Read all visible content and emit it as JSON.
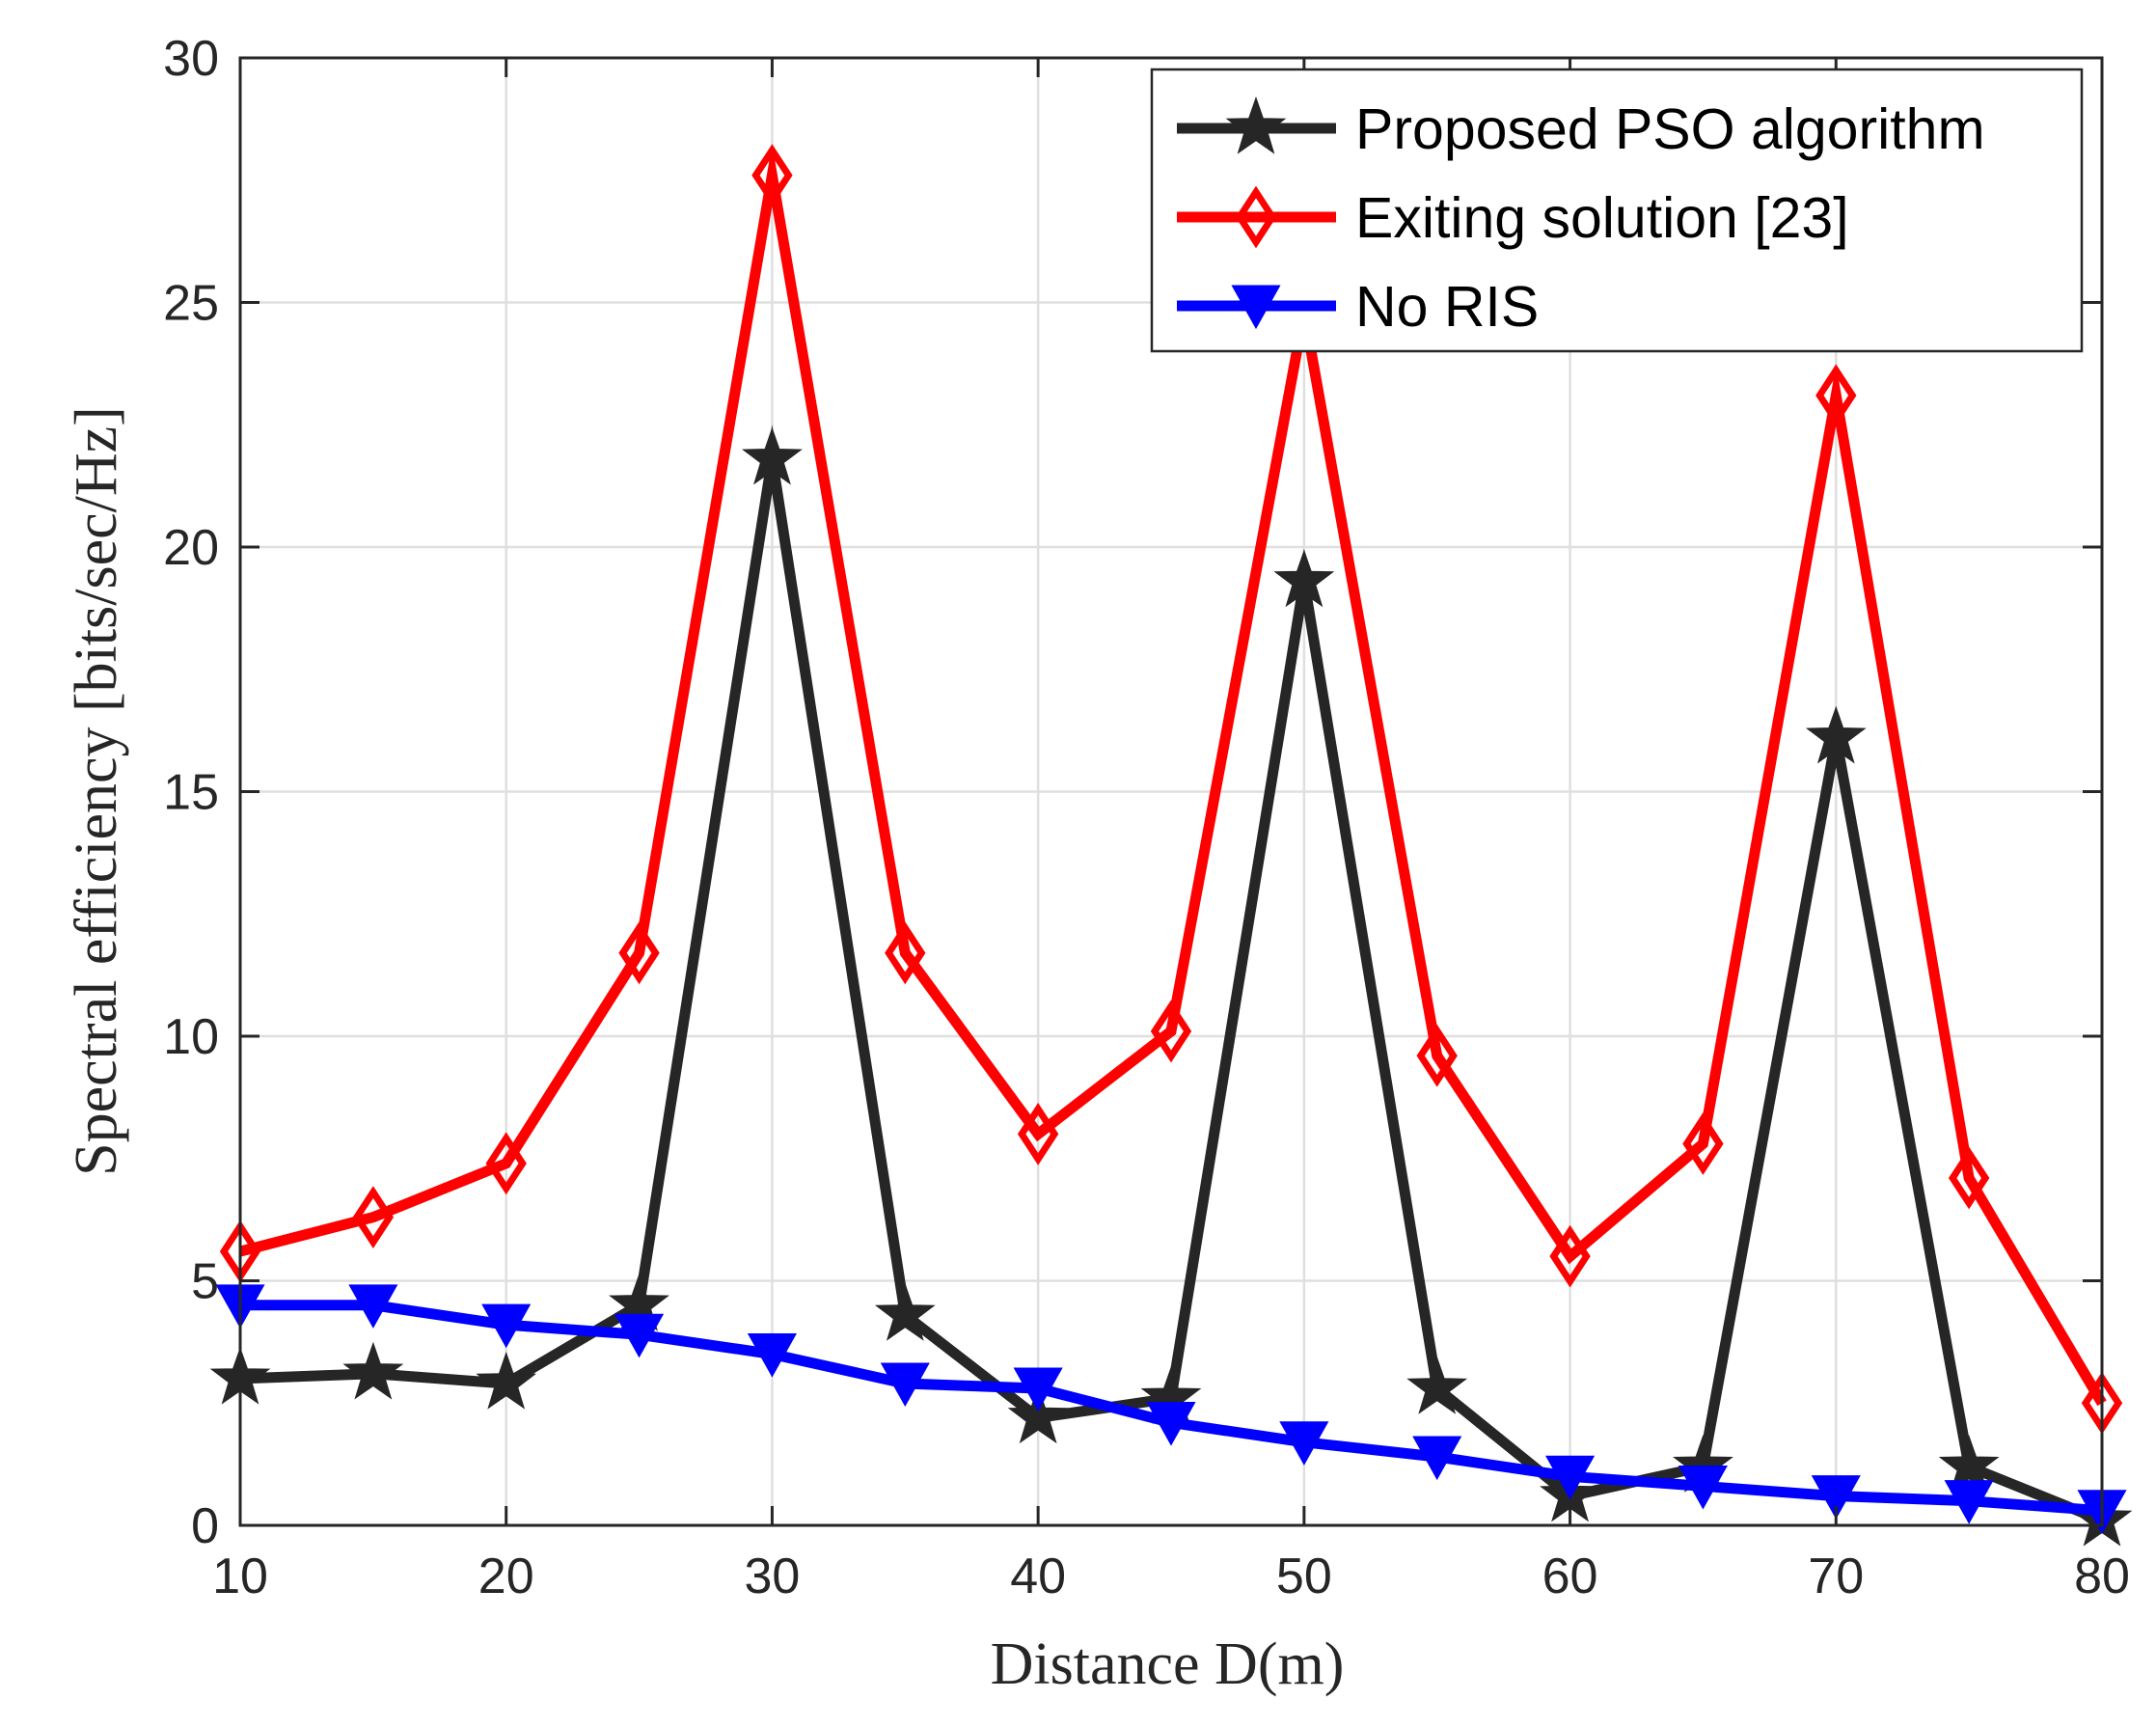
{
  "chart_data": {
    "type": "line",
    "title": "",
    "xlabel": "Distance D(m)",
    "ylabel": "Spectral efficiency [bits/sec/Hz]",
    "xlim": [
      10,
      80
    ],
    "ylim": [
      0,
      30
    ],
    "xticks": [
      10,
      20,
      30,
      40,
      50,
      60,
      70,
      80
    ],
    "yticks": [
      0,
      5,
      10,
      15,
      20,
      25,
      30
    ],
    "grid": true,
    "legend_position": "top-right",
    "x": [
      10,
      15,
      20,
      25,
      30,
      35,
      40,
      45,
      50,
      55,
      60,
      65,
      70,
      75,
      80
    ],
    "series": [
      {
        "name": "Proposed PSO algorithm",
        "color": "#262626",
        "marker": "star",
        "values": [
          3.0,
          3.1,
          2.9,
          4.5,
          21.8,
          4.3,
          2.2,
          2.6,
          19.3,
          2.8,
          0.6,
          1.2,
          16.1,
          1.2,
          0.1
        ]
      },
      {
        "name": "Exiting solution [23]",
        "color": "#ff0000",
        "marker": "diamond",
        "values": [
          5.6,
          6.3,
          7.4,
          11.7,
          27.6,
          11.7,
          8.0,
          10.1,
          24.8,
          9.6,
          5.5,
          7.8,
          23.1,
          7.1,
          2.5
        ]
      },
      {
        "name": "No RIS",
        "color": "#0000ff",
        "marker": "triangle-down",
        "values": [
          4.5,
          4.5,
          4.1,
          3.9,
          3.5,
          2.9,
          2.8,
          2.1,
          1.7,
          1.4,
          1.0,
          0.8,
          0.6,
          0.5,
          0.3
        ]
      }
    ]
  }
}
